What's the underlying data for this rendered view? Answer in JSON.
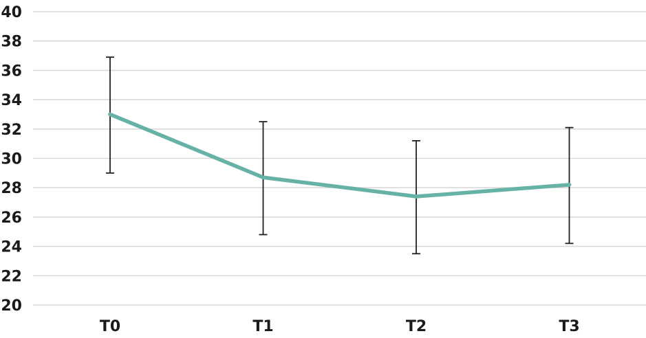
{
  "chart_data": {
    "type": "line",
    "title": "",
    "xlabel": "",
    "ylabel": "",
    "categories": [
      "T0",
      "T1",
      "T2",
      "T3"
    ],
    "series": [
      {
        "values": [
          33.0,
          28.7,
          27.4,
          28.2
        ],
        "error_low": [
          29.0,
          24.8,
          23.5,
          24.2
        ],
        "error_high": [
          36.9,
          32.5,
          31.2,
          32.1
        ],
        "color": "#66b2a6"
      }
    ],
    "ylim": [
      20,
      40
    ],
    "yticks": [
      20,
      22,
      24,
      26,
      28,
      30,
      32,
      34,
      36,
      38,
      40
    ],
    "ytick_labels": [
      "20",
      "22",
      "24",
      "26",
      "28",
      "30",
      "32",
      "34",
      "36",
      "38",
      "40"
    ],
    "grid": true,
    "legend": "none",
    "colors": {
      "grid": "#d9d9d9",
      "error_bar": "#1f1f1f",
      "text": "#1a1a1a"
    }
  }
}
